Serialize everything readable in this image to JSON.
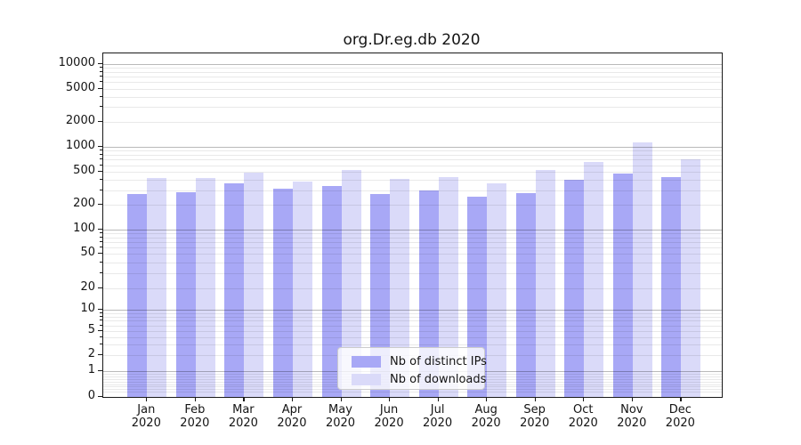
{
  "figure": {
    "title": "org.Dr.eg.db 2020"
  },
  "chart_data": {
    "type": "bar",
    "title": "org.Dr.eg.db 2020",
    "categories": [
      "Jan 2020",
      "Feb 2020",
      "Mar 2020",
      "Apr 2020",
      "May 2020",
      "Jun 2020",
      "Jul 2020",
      "Aug 2020",
      "Sep 2020",
      "Oct 2020",
      "Nov 2020",
      "Dec 2020"
    ],
    "series": [
      {
        "name": "Nb of distinct IPs",
        "color": "#a8a8f6",
        "values": [
          270,
          285,
          360,
          310,
          340,
          270,
          300,
          250,
          280,
          405,
          480,
          435
        ]
      },
      {
        "name": "Nb of downloads",
        "color": "#dadaf9",
        "values": [
          420,
          420,
          490,
          385,
          530,
          410,
          430,
          360,
          530,
          660,
          1120,
          700
        ]
      }
    ],
    "xlabel": "",
    "ylabel": "",
    "yscale": "symlog",
    "ylim": [
      0,
      13500
    ],
    "yticks": [
      0,
      1,
      2,
      5,
      10,
      20,
      50,
      100,
      200,
      500,
      1000,
      2000,
      5000,
      10000
    ],
    "grid": true,
    "legend_position": "lower center",
    "axis_color": "#1a1a1a",
    "major_grid_color": "#b8b8b8",
    "minor_grid_color": "#ebebeb"
  }
}
